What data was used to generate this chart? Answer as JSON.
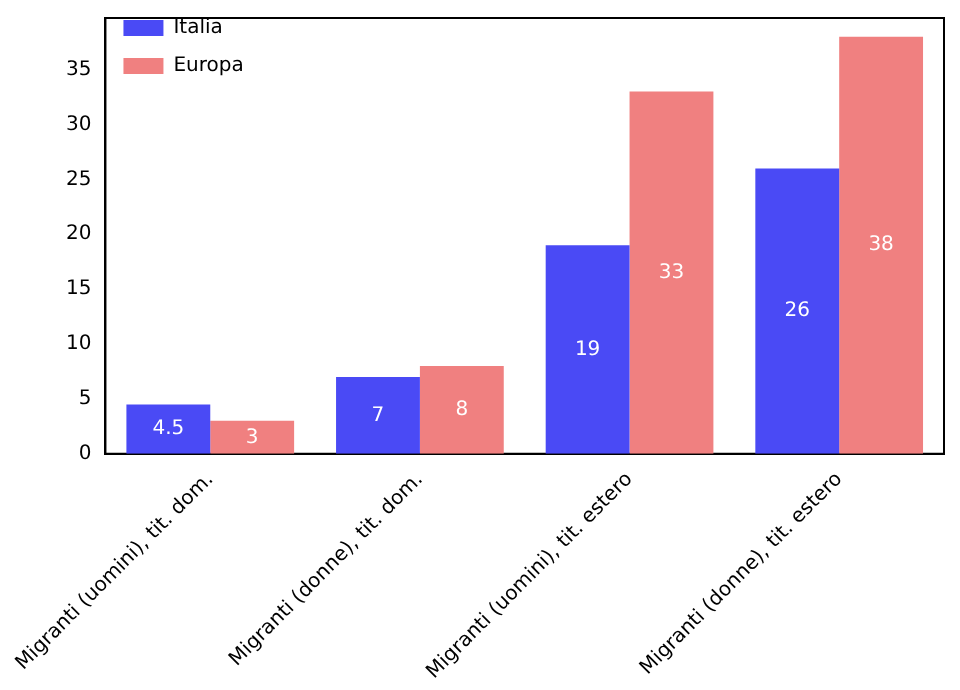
{
  "chart_data": {
    "type": "bar",
    "categories": [
      "Migranti (uomini), tit. dom.",
      "Migranti (donne), tit. dom.",
      "Migranti (uomini), tit. estero",
      "Migranti (donne), tit. estero"
    ],
    "series": [
      {
        "name": "Italia",
        "color": "#4a4af5",
        "values": [
          4.5,
          7,
          19,
          26
        ]
      },
      {
        "name": "Europa",
        "color": "#f08080",
        "values": [
          3,
          8,
          33,
          38
        ]
      }
    ],
    "ylim": [
      0,
      39.7
    ],
    "yticks": [
      0,
      5,
      10,
      15,
      20,
      25,
      30,
      35
    ],
    "grid": false,
    "legend": "top left",
    "data_labels": true
  }
}
